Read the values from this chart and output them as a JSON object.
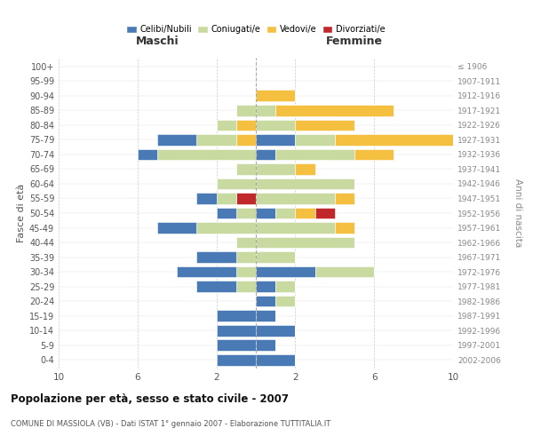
{
  "age_groups": [
    "0-4",
    "5-9",
    "10-14",
    "15-19",
    "20-24",
    "25-29",
    "30-34",
    "35-39",
    "40-44",
    "45-49",
    "50-54",
    "55-59",
    "60-64",
    "65-69",
    "70-74",
    "75-79",
    "80-84",
    "85-89",
    "90-94",
    "95-99",
    "100+"
  ],
  "birth_years": [
    "2002-2006",
    "1997-2001",
    "1992-1996",
    "1987-1991",
    "1982-1986",
    "1977-1981",
    "1972-1976",
    "1967-1971",
    "1962-1966",
    "1957-1961",
    "1952-1956",
    "1947-1951",
    "1942-1946",
    "1937-1941",
    "1932-1936",
    "1927-1931",
    "1922-1926",
    "1917-1921",
    "1912-1916",
    "1907-1911",
    "≤ 1906"
  ],
  "maschi": {
    "celibi": [
      2,
      2,
      2,
      2,
      0,
      2,
      3,
      2,
      0,
      2,
      1,
      1,
      0,
      0,
      1,
      2,
      0,
      0,
      0,
      0,
      0
    ],
    "coniugati": [
      0,
      0,
      0,
      0,
      0,
      1,
      1,
      1,
      1,
      3,
      1,
      1,
      2,
      1,
      5,
      2,
      1,
      1,
      0,
      0,
      0
    ],
    "vedovi": [
      0,
      0,
      0,
      0,
      0,
      0,
      0,
      0,
      0,
      0,
      0,
      0,
      0,
      0,
      0,
      1,
      1,
      0,
      0,
      0,
      0
    ],
    "divorziati": [
      0,
      0,
      0,
      0,
      0,
      0,
      0,
      0,
      0,
      0,
      0,
      1,
      0,
      0,
      0,
      0,
      0,
      0,
      0,
      0,
      0
    ]
  },
  "femmine": {
    "nubili": [
      2,
      1,
      2,
      1,
      1,
      1,
      3,
      0,
      0,
      0,
      1,
      0,
      0,
      0,
      1,
      2,
      0,
      0,
      0,
      0,
      0
    ],
    "coniugate": [
      0,
      0,
      0,
      0,
      1,
      1,
      3,
      2,
      5,
      4,
      1,
      4,
      5,
      2,
      4,
      2,
      2,
      1,
      0,
      0,
      0
    ],
    "vedove": [
      0,
      0,
      0,
      0,
      0,
      0,
      0,
      0,
      0,
      1,
      1,
      1,
      0,
      1,
      2,
      6,
      3,
      6,
      2,
      0,
      0
    ],
    "divorziate": [
      0,
      0,
      0,
      0,
      0,
      0,
      0,
      0,
      0,
      0,
      1,
      0,
      0,
      0,
      0,
      0,
      0,
      0,
      0,
      0,
      0
    ]
  },
  "colors": {
    "celibi": "#4a7ab5",
    "coniugati": "#c8daa0",
    "vedovi": "#f5c040",
    "divorziati": "#c0282b"
  },
  "xlim": 10,
  "title": "Popolazione per età, sesso e stato civile - 2007",
  "subtitle": "COMUNE DI MASSIOLA (VB) - Dati ISTAT 1° gennaio 2007 - Elaborazione TUTTITALIA.IT",
  "ylabel_left": "Fasce di età",
  "ylabel_right": "Anni di nascita",
  "xlabel_left": "Maschi",
  "xlabel_right": "Femmine",
  "legend_labels": [
    "Celibi/Nubili",
    "Coniugati/e",
    "Vedovi/e",
    "Divorziati/e"
  ]
}
